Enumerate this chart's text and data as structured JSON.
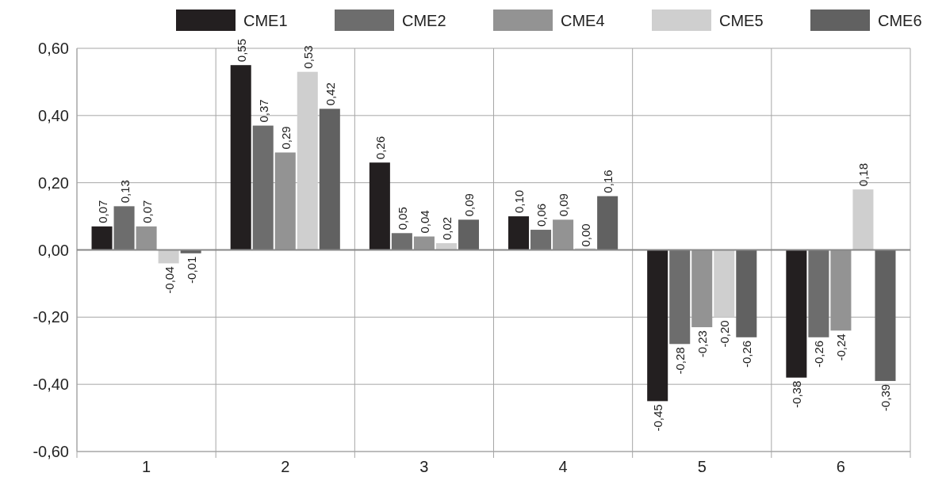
{
  "chart_data": {
    "type": "bar",
    "categories": [
      "1",
      "2",
      "3",
      "4",
      "5",
      "6"
    ],
    "series": [
      {
        "name": "CME1",
        "color": "#231f20",
        "values": [
          0.07,
          0.55,
          0.26,
          0.1,
          -0.45,
          -0.38
        ],
        "value_labels": [
          "0,07",
          "0,55",
          "0,26",
          "0,10",
          "-0,45",
          "-0,38"
        ]
      },
      {
        "name": "CME2",
        "color": "#6d6d6d",
        "values": [
          0.13,
          0.37,
          0.05,
          0.06,
          -0.28,
          -0.26
        ],
        "value_labels": [
          "0,13",
          "0,37",
          "0,05",
          "0,06",
          "-0,28",
          "-0,26"
        ]
      },
      {
        "name": "CME4",
        "color": "#939393",
        "values": [
          0.07,
          0.29,
          0.04,
          0.09,
          -0.23,
          -0.24
        ],
        "value_labels": [
          "0,07",
          "0,29",
          "0,04",
          "0,09",
          "-0,23",
          "-0,24"
        ]
      },
      {
        "name": "CME5",
        "color": "#cfcfcf",
        "values": [
          -0.04,
          0.53,
          0.02,
          0.0,
          -0.2,
          0.18
        ],
        "value_labels": [
          "-0,04",
          "0,53",
          "0,02",
          "0,00",
          "-0,20",
          "0,18"
        ]
      },
      {
        "name": "CME6",
        "color": "#616161",
        "values": [
          -0.01,
          0.42,
          0.09,
          0.16,
          -0.26,
          -0.39
        ],
        "value_labels": [
          "-0,01",
          "0,42",
          "0,09",
          "0,16",
          "-0,26",
          "-0,39"
        ]
      }
    ],
    "ylim": [
      -0.6,
      0.6
    ],
    "yticks": [
      {
        "value": -0.6,
        "label": "-0,60"
      },
      {
        "value": -0.4,
        "label": "-0,40"
      },
      {
        "value": -0.2,
        "label": "-0,20"
      },
      {
        "value": 0,
        "label": "0,00"
      },
      {
        "value": 0.2,
        "label": "0,20"
      },
      {
        "value": 0.4,
        "label": "0,40"
      },
      {
        "value": 0.6,
        "label": "0,60"
      }
    ],
    "grid": true,
    "legend": "top"
  }
}
